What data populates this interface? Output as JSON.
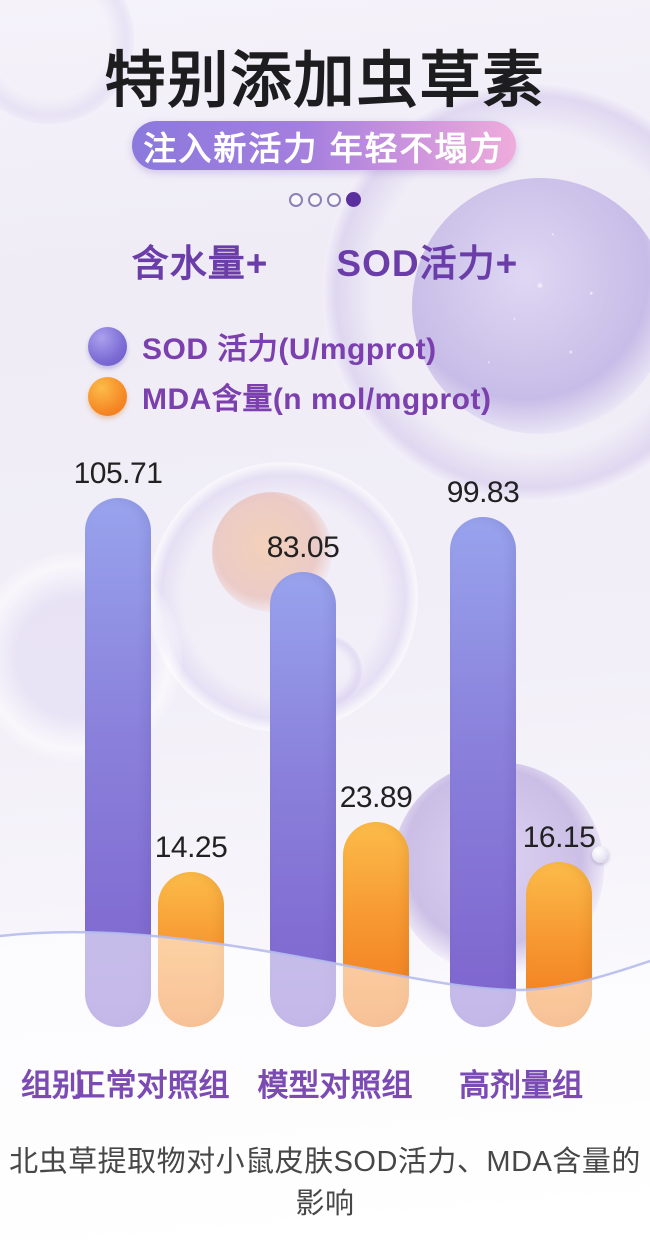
{
  "header": {
    "title": "特别添加虫草素",
    "subtitle": "注入新活力 年轻不塌方",
    "pagination": {
      "dot_count": 4,
      "active_index": 3
    }
  },
  "claims": [
    {
      "label": "含水量+"
    },
    {
      "label": "SOD活力+"
    }
  ],
  "legend": [
    {
      "label": "SOD 活力(U/mgprot)",
      "color": "#7e6ed5",
      "series": "sod"
    },
    {
      "label": "MDA含量(n mol/mgprot)",
      "color": "#f68c28",
      "series": "mda"
    }
  ],
  "chart_data": {
    "type": "bar",
    "categories": [
      "正常对照组",
      "模型对照组",
      "高剂量组"
    ],
    "x_axis_prefix": "组别",
    "series": [
      {
        "name": "SOD 活力(U/mgprot)",
        "key": "sod",
        "values": [
          105.71,
          83.05,
          99.83
        ]
      },
      {
        "name": "MDA含量(n mol/mgprot)",
        "key": "mda",
        "values": [
          14.25,
          23.89,
          16.15
        ]
      }
    ],
    "value_label_decimals": 2,
    "legend_position": "top-left",
    "grid": false,
    "title": "北虫草提取物对小鼠皮肤SOD活力、MDA含量的影响"
  },
  "footer": {
    "caption": "北虫草提取物对小鼠皮肤SOD活力、MDA含量的影响"
  },
  "colors": {
    "sod_bar_top": "#98a3ed",
    "sod_bar_bottom": "#7d63cd",
    "mda_bar_top": "#fcbc49",
    "mda_bar_bottom": "#f0771a",
    "accent_purple": "#6b3da9",
    "pill_gradient_start": "#8b79dd",
    "pill_gradient_end": "#efacdc",
    "active_dot": "#5c2f9f",
    "wave_line": "#b6bdec",
    "value_text": "#212121",
    "caption_text": "#474747"
  }
}
